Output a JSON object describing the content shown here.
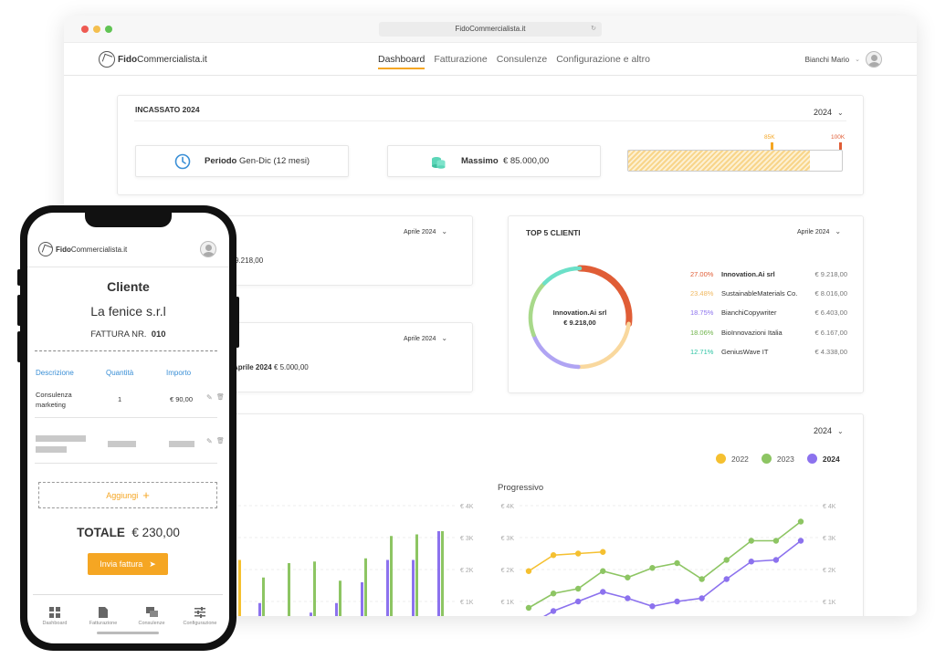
{
  "browser": {
    "url": "FidoCommercialista.it",
    "reload_icon": "reload-icon"
  },
  "nav": {
    "logo_prefix": "Fido",
    "logo_suffix": "Commercialista.it",
    "links": [
      "Dashboard",
      "Fatturazione",
      "Consulenze",
      "Configurazione e altro"
    ],
    "active": "Dashboard",
    "user_name": "Bianchi Mario"
  },
  "incassato": {
    "title": "INCASSATO 2024",
    "year": "2024",
    "period_label": "Periodo",
    "period_value": "Gen-Dic (12 mesi)",
    "max_label": "Massimo",
    "max_value": "€ 85.000,00",
    "marker_85": "85K",
    "marker_100": "100K",
    "progress_fraction": 0.85
  },
  "card1": {
    "month": "Aprile 2024",
    "value": "9.218,00"
  },
  "card2": {
    "month": "Aprile 2024",
    "label": "Aprile 2024",
    "value": "€ 5.000,00"
  },
  "top5": {
    "title": "TOP 5 CLIENTI",
    "month": "Aprile 2024",
    "center_name": "Innovation.Ai srl",
    "center_value": "€ 9.218,00",
    "clients": [
      {
        "pct": "27.00%",
        "name": "Innovation.Ai srl",
        "value": "€ 9.218,00",
        "color": "#e05d36"
      },
      {
        "pct": "23.48%",
        "name": "SustainableMaterials Co.",
        "value": "€ 8.016,00",
        "color": "#f9d89e"
      },
      {
        "pct": "18.75%",
        "name": "BianchiCopywriter",
        "value": "€ 6.403,00",
        "color": "#b0a4f3"
      },
      {
        "pct": "18.06%",
        "name": "BioInnovazioni Italia",
        "value": "€ 6.167,00",
        "color": "#a8d98a"
      },
      {
        "pct": "12.71%",
        "name": "GeniusWave IT",
        "value": "€ 4.338,00",
        "color": "#6ce0c8"
      }
    ]
  },
  "charts": {
    "year": "2024",
    "legend": [
      {
        "label": "2022",
        "color": "#f5c030"
      },
      {
        "label": "2023",
        "color": "#8dc563"
      },
      {
        "label": "2024",
        "color": "#8c72ee"
      }
    ],
    "progressive_title": "Progressivo",
    "y_ticks": [
      "€ 4K",
      "€ 3K",
      "€ 2K",
      "€ 1K"
    ]
  },
  "chart_data": [
    {
      "type": "bar",
      "title": "",
      "series": [
        {
          "name": "2022",
          "values": [
            2.3
          ]
        },
        {
          "name": "2023",
          "values": [
            1.75,
            2.2,
            2.25,
            1.65,
            2.35,
            3.05,
            3.1,
            3.2
          ]
        },
        {
          "name": "2024",
          "values": [
            0.95,
            0.45,
            0.65,
            0.95,
            1.6,
            2.3,
            2.3,
            3.2
          ]
        }
      ],
      "ylim": [
        0,
        4
      ]
    },
    {
      "type": "line",
      "title": "Progressivo",
      "series": [
        {
          "name": "2022",
          "values": [
            1.95,
            2.45,
            2.5,
            2.55
          ]
        },
        {
          "name": "2023",
          "values": [
            0.8,
            1.25,
            1.4,
            1.95,
            1.75,
            2.05,
            2.2,
            1.7,
            2.3,
            2.9,
            2.9,
            3.5
          ]
        },
        {
          "name": "2024",
          "values": [
            0.25,
            0.7,
            1.0,
            1.3,
            1.1,
            0.85,
            1.0,
            1.1,
            1.7,
            2.25,
            2.3,
            2.9
          ]
        }
      ],
      "ylim": [
        0,
        4
      ]
    }
  ],
  "phone": {
    "logo_prefix": "Fido",
    "logo_suffix": "Commercialista.it",
    "heading": "Cliente",
    "client": "La fenice s.r.l",
    "invoice_label": "FATTURA NR.",
    "invoice_number": "010",
    "col_desc": "Descrizione",
    "col_qty": "Quantità",
    "col_amount": "Importo",
    "row_desc": "Consulenza marketing",
    "row_qty": "1",
    "row_amount": "€ 90,00",
    "add_label": "Aggiungi",
    "total_label": "TOTALE",
    "total_value": "€ 230,00",
    "send_label": "Invia fattura",
    "tabs": [
      "Dashboard",
      "Fatturazione",
      "Consulenze",
      "Configurazione"
    ]
  }
}
